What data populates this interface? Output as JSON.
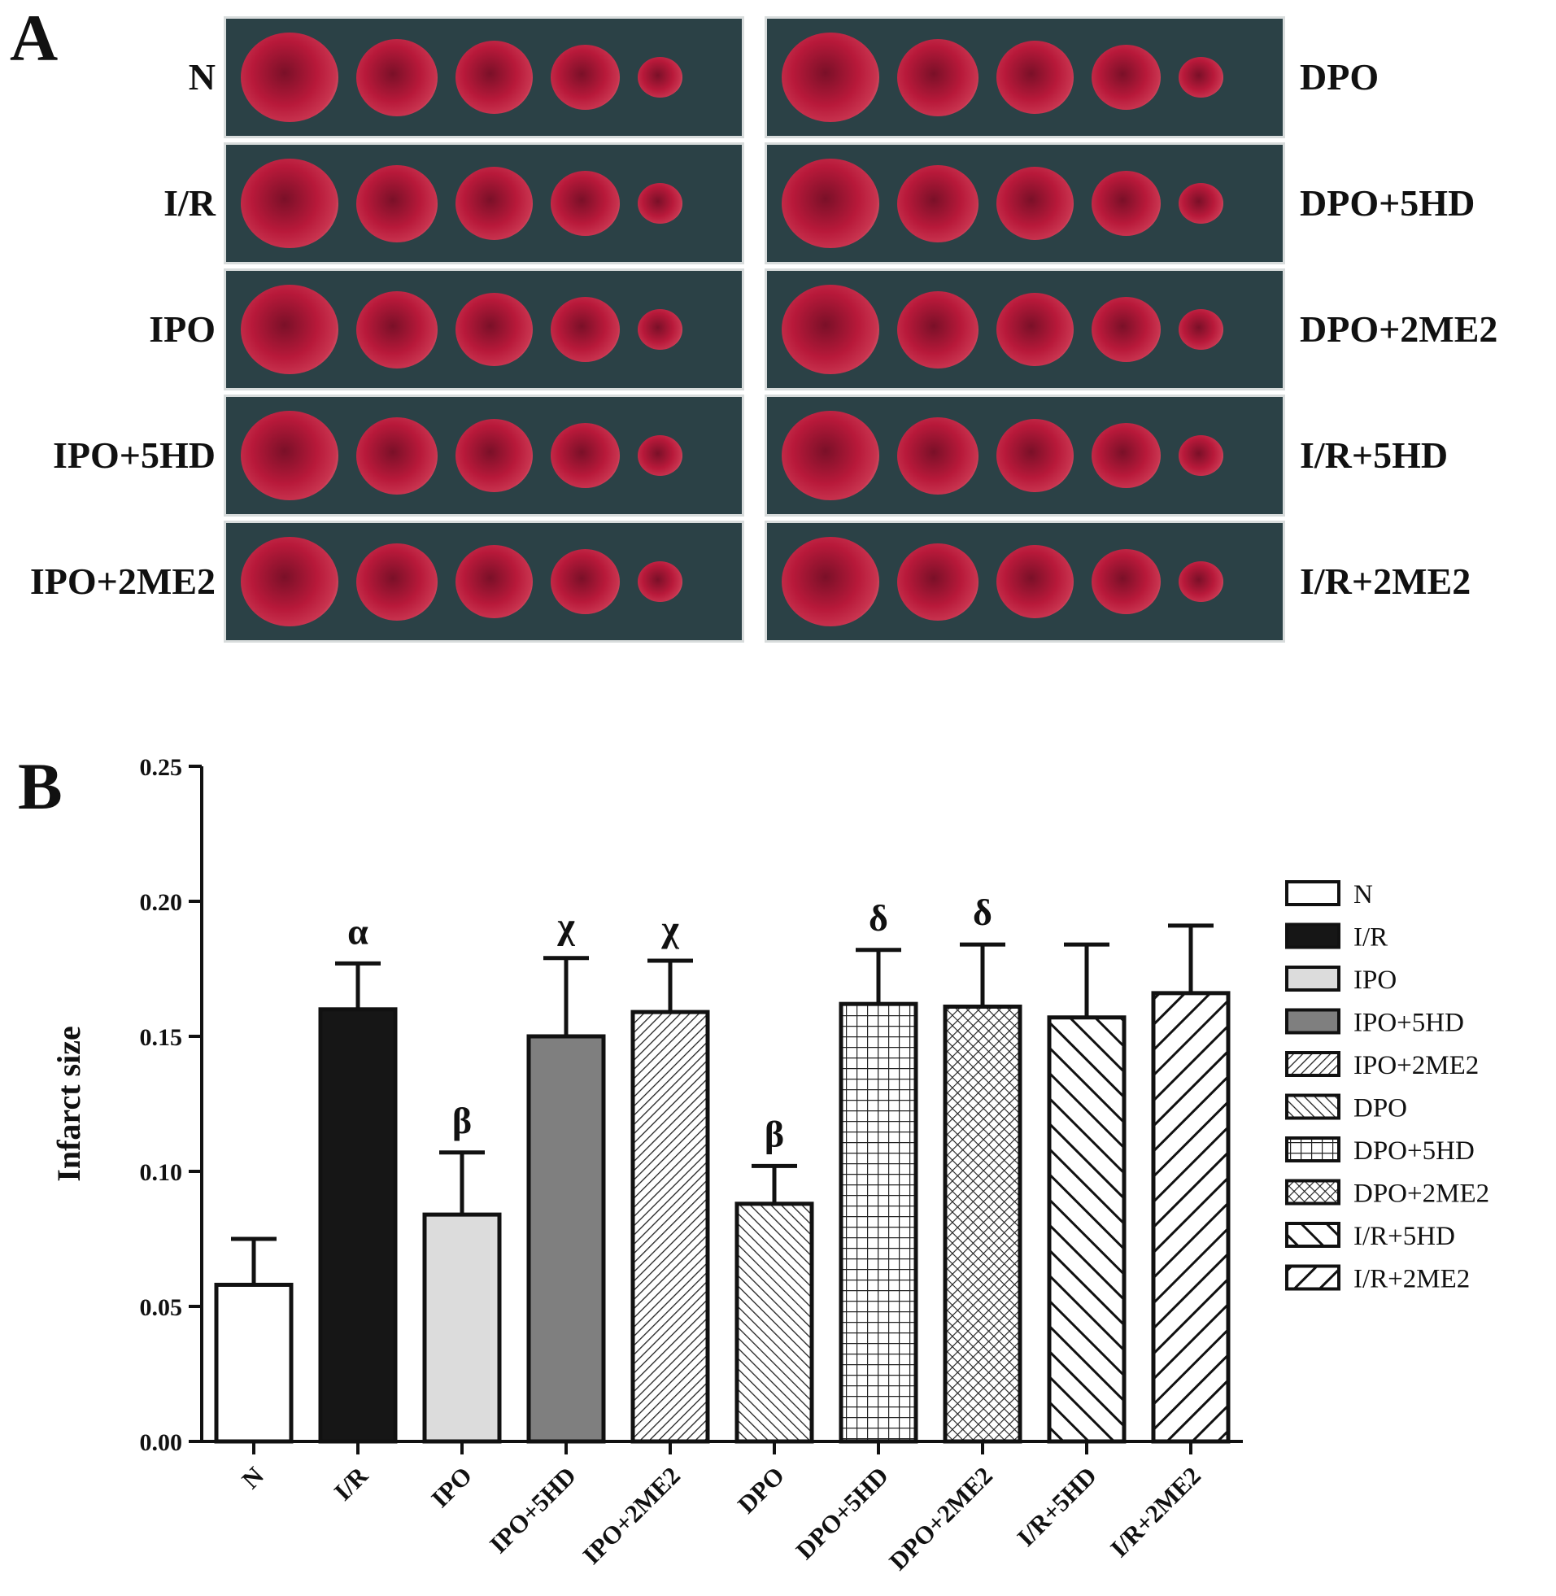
{
  "panels": {
    "a_label": "A",
    "b_label": "B"
  },
  "photos": {
    "left_labels": [
      "N",
      "I/R",
      "IPO",
      "IPO+5HD",
      "IPO+2ME2"
    ],
    "right_labels": [
      "DPO",
      "DPO+5HD",
      "DPO+2ME2",
      "I/R+5HD",
      "I/R+2ME2"
    ],
    "slice_color": "#b8193a",
    "background_color": "#2b4146"
  },
  "chart_data": {
    "type": "bar",
    "ylabel": "Infarct size",
    "ylim": [
      0,
      0.25
    ],
    "yticks": [
      "0.00",
      "0.05",
      "0.10",
      "0.15",
      "0.20",
      "0.25"
    ],
    "categories": [
      "N",
      "I/R",
      "IPO",
      "IPO+5HD",
      "IPO+2ME2",
      "DPO",
      "DPO+5HD",
      "DPO+2ME2",
      "I/R+5HD",
      "I/R+2ME2"
    ],
    "values": [
      0.058,
      0.16,
      0.084,
      0.15,
      0.159,
      0.088,
      0.162,
      0.161,
      0.157,
      0.166
    ],
    "errors": [
      0.017,
      0.017,
      0.023,
      0.029,
      0.019,
      0.014,
      0.02,
      0.023,
      0.027,
      0.025
    ],
    "annotations": [
      "",
      "α",
      "β",
      "χ",
      "χ",
      "β",
      "δ",
      "δ",
      "",
      ""
    ],
    "fills": [
      "white",
      "black",
      "lightgray",
      "darkgray",
      "diag-fine",
      "diag-back",
      "grid",
      "crosshatch",
      "diag-back-wide",
      "diag-fwd-wide"
    ],
    "legend": [
      "N",
      "I/R",
      "IPO",
      "IPO+5HD",
      "IPO+2ME2",
      "DPO",
      "DPO+5HD",
      "DPO+2ME2",
      "I/R+5HD",
      "I/R+2ME2"
    ],
    "legend_position": "right",
    "grid": false
  }
}
